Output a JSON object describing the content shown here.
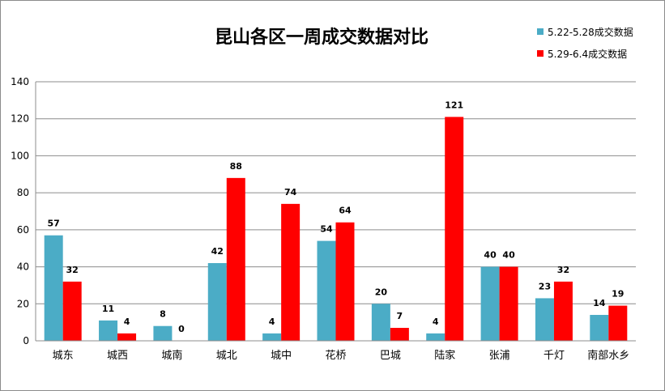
{
  "chart_data": {
    "type": "bar",
    "title": "昆山各区一周成交数据对比",
    "categories": [
      "城东",
      "城西",
      "城南",
      "城北",
      "城中",
      "花桥",
      "巴城",
      "陆家",
      "张浦",
      "千灯",
      "南部水乡"
    ],
    "series": [
      {
        "name": "5.22-5.28成交数据",
        "color": "#4bacc6",
        "values": [
          57,
          11,
          8,
          42,
          4,
          54,
          20,
          4,
          40,
          23,
          14
        ]
      },
      {
        "name": "5.29-6.4成交数据",
        "color": "#ff0000",
        "values": [
          32,
          4,
          0,
          88,
          74,
          64,
          7,
          121,
          40,
          32,
          19
        ]
      }
    ],
    "ylim": [
      0,
      140
    ],
    "yticks": [
      0,
      20,
      40,
      60,
      80,
      100,
      120,
      140
    ],
    "grid": true,
    "legend_position": "top-right",
    "data_labels": true
  }
}
